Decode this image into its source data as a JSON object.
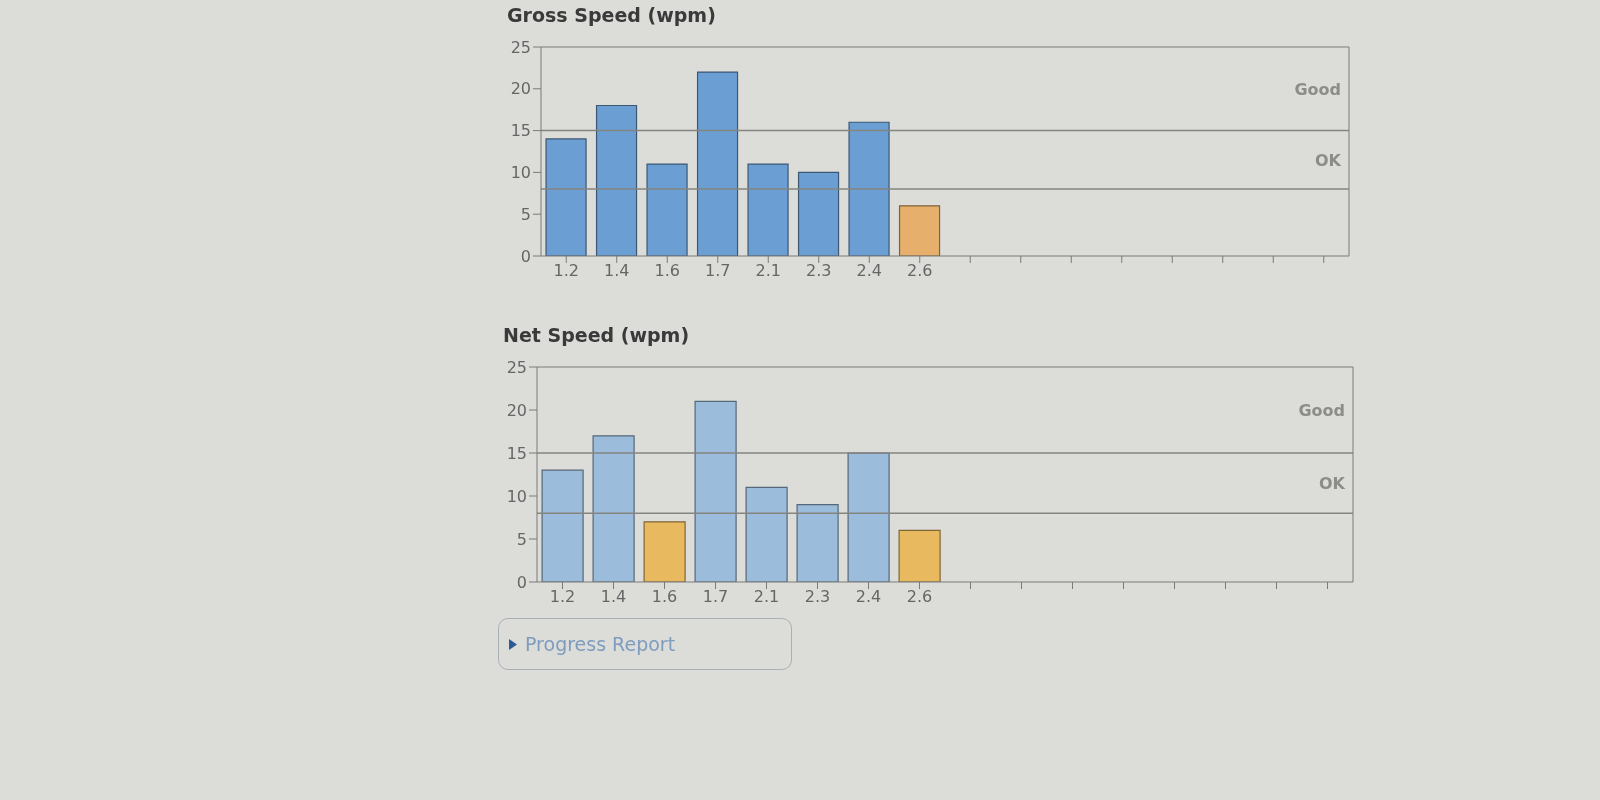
{
  "chart_data": [
    {
      "type": "bar",
      "title": "Gross Speed (wpm)",
      "categories": [
        "1.2",
        "1.4",
        "1.6",
        "1.7",
        "2.1",
        "2.3",
        "2.4",
        "2.6",
        null,
        null,
        null,
        null,
        null,
        null,
        null,
        null
      ],
      "values": [
        14,
        18,
        11,
        22,
        11,
        10,
        16,
        6,
        null,
        null,
        null,
        null,
        null,
        null,
        null,
        null
      ],
      "colors": [
        "#6b9fd3",
        "#6b9fd3",
        "#6b9fd3",
        "#6b9fd3",
        "#6b9fd3",
        "#6b9fd3",
        "#6b9fd3",
        "#e6b06c",
        "#6b9fd3",
        "#6b9fd3",
        "#6b9fd3",
        "#6b9fd3",
        "#6b9fd3",
        "#6b9fd3",
        "#6b9fd3",
        "#6b9fd3"
      ],
      "ylim": [
        0,
        25
      ],
      "yticks": [
        0,
        5,
        10,
        15,
        20,
        25
      ],
      "ref_lines": [
        {
          "axis": "y",
          "value": 15,
          "label": "Good"
        },
        {
          "axis": "y",
          "value": 8,
          "label": "OK"
        }
      ]
    },
    {
      "type": "bar",
      "title": "Net Speed (wpm)",
      "categories": [
        "1.2",
        "1.4",
        "1.6",
        "1.7",
        "2.1",
        "2.3",
        "2.4",
        "2.6",
        null,
        null,
        null,
        null,
        null,
        null,
        null,
        null
      ],
      "values": [
        13,
        17,
        7,
        21,
        11,
        9,
        15,
        6,
        null,
        null,
        null,
        null,
        null,
        null,
        null,
        null
      ],
      "colors": [
        "#9bbcdb",
        "#9bbcdb",
        "#e8b95f",
        "#9bbcdb",
        "#9bbcdb",
        "#9bbcdb",
        "#9bbcdb",
        "#e8b95f",
        "#9bbcdb",
        "#9bbcdb",
        "#9bbcdb",
        "#9bbcdb",
        "#9bbcdb",
        "#9bbcdb",
        "#9bbcdb",
        "#9bbcdb"
      ],
      "ylim": [
        0,
        25
      ],
      "yticks": [
        0,
        5,
        10,
        15,
        20,
        25
      ],
      "ref_lines": [
        {
          "axis": "y",
          "value": 15,
          "label": "Good"
        },
        {
          "axis": "y",
          "value": 8,
          "label": "OK"
        }
      ],
      "annotations": [
        "Progress Report"
      ]
    }
  ]
}
